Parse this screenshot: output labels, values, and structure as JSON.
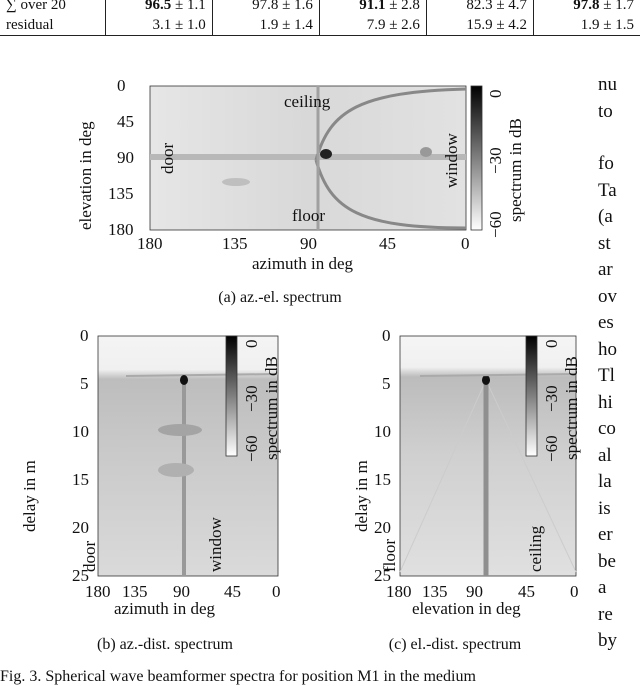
{
  "table": {
    "rows": [
      {
        "label": "∑ over 20",
        "cells": [
          {
            "main": "96.5",
            "pm": "± 1.1",
            "bold": true
          },
          {
            "main": "97.8",
            "pm": "± 1.6",
            "bold": false
          },
          {
            "main": "91.1",
            "pm": "± 2.8",
            "bold": true
          },
          {
            "main": "82.3",
            "pm": "± 4.7",
            "bold": false
          },
          {
            "main": "97.8",
            "pm": "± 1.7",
            "bold": true
          }
        ]
      },
      {
        "label": "residual",
        "cells": [
          {
            "main": "3.1",
            "pm": "± 1.0"
          },
          {
            "main": "1.9",
            "pm": "± 1.4"
          },
          {
            "main": "7.9",
            "pm": "± 2.6"
          },
          {
            "main": "15.9",
            "pm": "± 4.2"
          },
          {
            "main": "1.9",
            "pm": "± 1.5"
          }
        ]
      }
    ]
  },
  "figures": {
    "a": {
      "caption": "(a) az.-el. spectrum",
      "xlabel": "azimuth in deg",
      "ylabel": "elevation in deg",
      "xticks": [
        "180",
        "135",
        "90",
        "45",
        "0"
      ],
      "yticks": [
        "0",
        "45",
        "90",
        "135",
        "180"
      ],
      "annotations": {
        "ceiling": "ceiling",
        "floor": "floor",
        "door": "door",
        "window": "window"
      },
      "colorbar": {
        "label": "spectrum in dB",
        "ticks": [
          "0",
          "−30",
          "−60"
        ]
      }
    },
    "b": {
      "caption": "(b) az.-dist. spectrum",
      "xlabel": "azimuth in deg",
      "ylabel": "delay in m",
      "xticks": [
        "180",
        "135",
        "90",
        "45",
        "0"
      ],
      "yticks": [
        "0",
        "5",
        "10",
        "15",
        "20",
        "25"
      ],
      "annotations": {
        "door": "door",
        "window": "window"
      },
      "colorbar": {
        "label": "spectrum in dB",
        "ticks": [
          "0",
          "−30",
          "−60"
        ]
      }
    },
    "c": {
      "caption": "(c) el.-dist. spectrum",
      "xlabel": "elevation in deg",
      "ylabel": "delay in m",
      "xticks": [
        "180",
        "135",
        "90",
        "45",
        "0"
      ],
      "yticks": [
        "0",
        "5",
        "10",
        "15",
        "20",
        "25"
      ],
      "annotations": {
        "floor": "floor",
        "ceiling": "ceiling"
      },
      "colorbar": {
        "label": "spectrum in dB",
        "ticks": [
          "0",
          "−30",
          "−60"
        ]
      }
    }
  },
  "fig_caption": "Fig. 3.  Spherical wave beamformer spectra for position M1 in the medium",
  "side_text": [
    "nu",
    "to",
    "",
    "fo",
    "Ta",
    "(a",
    "st",
    "ar",
    "ov",
    "es",
    "ho",
    "Tl",
    "hi",
    "co",
    "al",
    "la",
    "is",
    "er",
    "be",
    "a",
    "re",
    "by"
  ]
}
